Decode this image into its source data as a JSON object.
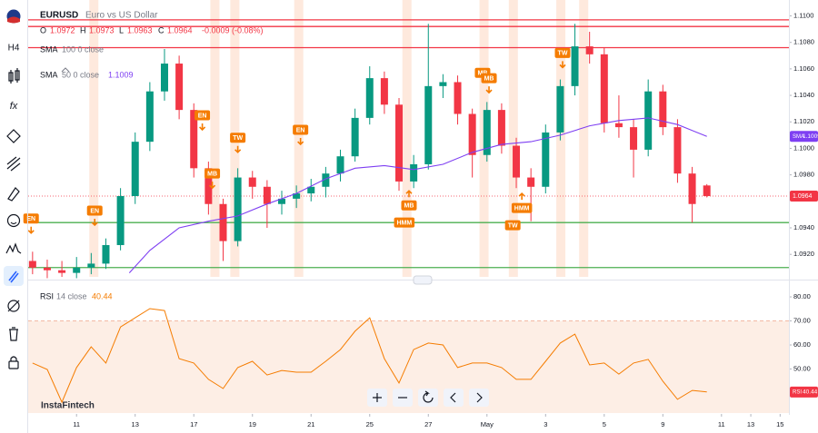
{
  "toolbar": {
    "interval": "H4",
    "formula": "fx"
  },
  "watermark": "InstaFintech",
  "chart_data": [
    {
      "type": "candlestick",
      "title": "EURUSD",
      "subtitle": "Euro vs US Dollar",
      "ohlc_header": {
        "open_label": "O",
        "open": 1.0972,
        "high_label": "H",
        "high": 1.0973,
        "low_label": "L",
        "low": 1.0963,
        "close_label": "C",
        "close": 1.0964,
        "change": "-0.0009 (-0.08%)"
      },
      "indicators": [
        {
          "name": "SMA",
          "params": "100 0 close"
        },
        {
          "name": "SMA",
          "params": "50 0 close",
          "value": 1.1009,
          "color": "#7e3ff2"
        }
      ],
      "x": [
        -1.5,
        -1,
        -0.5,
        0,
        0.5,
        1,
        1.5,
        2,
        2.5,
        3,
        3.5,
        4,
        4.5,
        5,
        5.5,
        6,
        6.5,
        7,
        7.5,
        8,
        8.5,
        9,
        9.5,
        10,
        10.5,
        11,
        11.5,
        12,
        12.5,
        13,
        13.5,
        14,
        14.5,
        15,
        15.5,
        16,
        16.5,
        17,
        17.5,
        18,
        18.5,
        19,
        19.5,
        20,
        20.5,
        21,
        21.5
      ],
      "open": [
        1.0915,
        1.091,
        1.0908,
        1.0906,
        1.091,
        1.0913,
        1.0927,
        1.0964,
        1.1005,
        1.1043,
        1.1064,
        1.1029,
        1.0985,
        1.0958,
        1.093,
        1.0978,
        1.0971,
        1.0958,
        1.0962,
        1.0966,
        1.0971,
        1.0981,
        1.0994,
        1.1023,
        1.1053,
        1.1033,
        1.0975,
        1.0988,
        1.1047,
        1.105,
        1.1026,
        1.0995,
        1.1029,
        1.1002,
        1.0978,
        1.0971,
        1.1012,
        1.1047,
        1.1077,
        1.1071,
        1.1019,
        1.1016,
        1.0999,
        1.1043,
        1.1016,
        1.0981,
        1.0972
      ],
      "high": [
        1.0922,
        1.0916,
        1.0915,
        1.0918,
        1.0921,
        1.0932,
        1.097,
        1.1012,
        1.105,
        1.1075,
        1.107,
        1.1034,
        1.099,
        1.0962,
        1.0985,
        1.0983,
        1.0976,
        1.0968,
        1.0972,
        1.0977,
        1.0986,
        1.0999,
        1.103,
        1.1062,
        1.1058,
        1.1038,
        1.0995,
        1.1094,
        1.1056,
        1.1055,
        1.103,
        1.1035,
        1.1034,
        1.1008,
        1.0985,
        1.1018,
        1.1052,
        1.1094,
        1.1088,
        1.1076,
        1.104,
        1.1022,
        1.1052,
        1.1048,
        1.1022,
        1.0986,
        1.0973
      ],
      "low": [
        1.0905,
        1.0902,
        1.0903,
        1.0902,
        1.0905,
        1.0909,
        1.0923,
        1.0958,
        1.0998,
        1.1036,
        1.1022,
        1.0978,
        1.095,
        1.0915,
        1.0926,
        1.0962,
        1.094,
        1.095,
        1.0955,
        1.096,
        1.0963,
        1.0975,
        1.099,
        1.1018,
        1.1026,
        1.0968,
        1.097,
        1.0984,
        1.1038,
        1.1018,
        1.0978,
        1.099,
        1.0996,
        1.097,
        1.0945,
        1.0966,
        1.1006,
        1.104,
        1.1064,
        1.1012,
        1.1008,
        1.0978,
        1.0994,
        1.101,
        1.0974,
        1.0944,
        1.0963
      ],
      "close": [
        1.091,
        1.0908,
        1.0906,
        1.091,
        1.0913,
        1.0927,
        1.0964,
        1.1005,
        1.1043,
        1.1064,
        1.1029,
        1.0985,
        1.0958,
        1.093,
        1.0978,
        1.0971,
        1.0958,
        1.0962,
        1.0966,
        1.0971,
        1.0981,
        1.0994,
        1.1023,
        1.1053,
        1.1033,
        1.0975,
        1.0988,
        1.1047,
        1.105,
        1.1026,
        1.0995,
        1.1029,
        1.1002,
        1.0978,
        1.0971,
        1.1012,
        1.1047,
        1.1077,
        1.1071,
        1.1019,
        1.1016,
        1.0999,
        1.1043,
        1.1016,
        1.0981,
        1.0958,
        1.0964
      ],
      "up_color": "#089981",
      "down_color": "#f23645",
      "series": [
        {
          "name": "SMA",
          "color": "#7e3ff2",
          "x": [
            1.8,
            2.5,
            3.5,
            4.5,
            5.5,
            6.5,
            7.5,
            8.5,
            9.5,
            10.5,
            11.5,
            12.5,
            13.5,
            14.5,
            15.5,
            16.5,
            17.5,
            18.5,
            19.5,
            20.5,
            21.5
          ],
          "values": [
            1.0906,
            1.0923,
            1.094,
            1.0945,
            1.0949,
            1.0958,
            1.0966,
            1.0977,
            1.0985,
            1.0987,
            1.0984,
            1.0988,
            1.0997,
            1.1003,
            1.1005,
            1.101,
            1.1017,
            1.1021,
            1.1023,
            1.1018,
            1.1009
          ]
        }
      ],
      "levels": [
        {
          "value": 1.1097,
          "color": "#f23645"
        },
        {
          "value": 1.1092,
          "color": "#f23645"
        },
        {
          "value": 1.1076,
          "color": "#f23645"
        },
        {
          "value": 1.0944,
          "color": "#4caf50"
        },
        {
          "value": 1.091,
          "color": "#4caf50"
        }
      ],
      "event_bands": [
        0.59,
        4.72,
        5.4,
        7.58,
        11.27,
        13.9,
        14.9,
        16.52,
        17.3
      ],
      "events": [
        {
          "label": "EN",
          "x": -1.55,
          "y": 1.0947,
          "arrow": "down"
        },
        {
          "label": "EN",
          "x": 0.62,
          "y": 1.0953,
          "arrow": "down"
        },
        {
          "label": "EN",
          "x": 4.29,
          "y": 1.1025,
          "arrow": "down"
        },
        {
          "label": "MB",
          "x": 4.63,
          "y": 1.0981,
          "arrow": "down"
        },
        {
          "label": "TW",
          "x": 5.5,
          "y": 1.1008,
          "arrow": "down"
        },
        {
          "label": "EN",
          "x": 7.64,
          "y": 1.1014,
          "arrow": "down"
        },
        {
          "label": "MB",
          "x": 11.34,
          "y": 1.0957,
          "arrow": "up"
        },
        {
          "label": "HMM",
          "x": 11.18,
          "y": 1.0944,
          "arrow": "none"
        },
        {
          "label": "MB",
          "x": 13.85,
          "y": 1.1057,
          "arrow": "none"
        },
        {
          "label": "MB",
          "x": 14.07,
          "y": 1.1053,
          "arrow": "down"
        },
        {
          "label": "HMM",
          "x": 15.19,
          "y": 1.0955,
          "arrow": "up"
        },
        {
          "label": "TW",
          "x": 14.88,
          "y": 1.0942,
          "arrow": "none"
        },
        {
          "label": "TW",
          "x": 16.58,
          "y": 1.1072,
          "arrow": "down"
        }
      ],
      "xlim": [
        -1.65,
        24.3
      ],
      "ylim": [
        1.0903,
        1.1112
      ],
      "yticks": [
        {
          "value": 1.11,
          "label": "1.1100"
        },
        {
          "value": 1.108,
          "label": "1.1080"
        },
        {
          "value": 1.106,
          "label": "1.1060"
        },
        {
          "value": 1.104,
          "label": "1.1040"
        },
        {
          "value": 1.102,
          "label": "1.1020"
        },
        {
          "value": 1.1,
          "label": "1.1000"
        },
        {
          "value": 1.098,
          "label": "1.0980"
        },
        {
          "value": 1.094,
          "label": "1.0940"
        },
        {
          "value": 1.092,
          "label": "1.0920"
        }
      ]
    },
    {
      "type": "line",
      "title": "RSI",
      "params": "14 close",
      "value": 40.44,
      "color": "#f57c00",
      "x": [
        -1.5,
        -1,
        -0.5,
        0,
        0.5,
        1,
        1.5,
        2,
        2.5,
        3,
        3.5,
        4,
        4.5,
        5,
        5.5,
        6,
        6.5,
        7,
        7.5,
        8,
        8.5,
        9,
        9.5,
        10,
        10.5,
        11,
        11.5,
        12,
        12.5,
        13,
        13.5,
        14,
        14.5,
        15,
        15.5,
        16,
        16.5,
        17,
        17.5,
        18,
        18.5,
        19,
        19.5,
        20,
        20.5,
        21,
        21.5
      ],
      "values": [
        52.5,
        49.8,
        36.2,
        50.6,
        59.2,
        52.5,
        67.5,
        71.3,
        75.1,
        74.3,
        54.3,
        52.5,
        45.7,
        41.9,
        50.6,
        53.2,
        47.5,
        49.4,
        48.7,
        48.7,
        53.2,
        58.1,
        65.7,
        71.3,
        54.3,
        44.2,
        58.1,
        60.8,
        60.0,
        50.6,
        52.5,
        52.5,
        50.6,
        45.7,
        45.7,
        53.2,
        60.8,
        64.5,
        51.7,
        52.5,
        47.9,
        52.5,
        54.0,
        44.9,
        37.4,
        41.1,
        40.44
      ],
      "band": [
        30,
        70
      ],
      "xlim": [
        -1.65,
        24.3
      ],
      "ylim": [
        31.7,
        85.3
      ],
      "yticks": [
        {
          "value": 80,
          "label": "80.00"
        },
        {
          "value": 70,
          "label": "70.00"
        },
        {
          "value": 60,
          "label": "60.00"
        },
        {
          "value": 50,
          "label": "50.00"
        },
        {
          "value": 40,
          "label": "40.00"
        }
      ],
      "xticks": [
        {
          "value": 0,
          "label": "11"
        },
        {
          "value": 2,
          "label": "13"
        },
        {
          "value": 4,
          "label": "17"
        },
        {
          "value": 6,
          "label": "19"
        },
        {
          "value": 8,
          "label": "21"
        },
        {
          "value": 10,
          "label": "25"
        },
        {
          "value": 12,
          "label": "27"
        },
        {
          "value": 14,
          "label": "May"
        },
        {
          "value": 16,
          "label": "3"
        },
        {
          "value": 18,
          "label": "5"
        },
        {
          "value": 20,
          "label": "9"
        },
        {
          "value": 22,
          "label": "11"
        },
        {
          "value": 23,
          "label": "13"
        },
        {
          "value": 24,
          "label": "15"
        }
      ]
    }
  ]
}
